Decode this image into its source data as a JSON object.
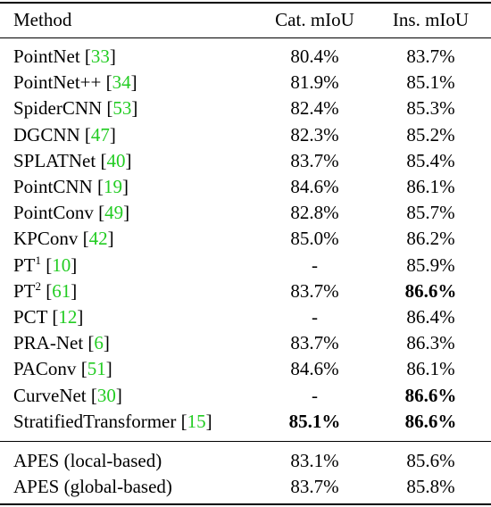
{
  "table": {
    "headers": {
      "method": "Method",
      "cat": "Cat. mIoU",
      "ins": "Ins. mIoU"
    },
    "rows": [
      {
        "name": "PointNet",
        "sup": "",
        "ref": "33",
        "cat": "80.4%",
        "ins": "83.7%",
        "cat_bold": false,
        "ins_bold": false
      },
      {
        "name": "PointNet++",
        "sup": "",
        "ref": "34",
        "cat": "81.9%",
        "ins": "85.1%",
        "cat_bold": false,
        "ins_bold": false
      },
      {
        "name": "SpiderCNN",
        "sup": "",
        "ref": "53",
        "cat": "82.4%",
        "ins": "85.3%",
        "cat_bold": false,
        "ins_bold": false
      },
      {
        "name": "DGCNN",
        "sup": "",
        "ref": "47",
        "cat": "82.3%",
        "ins": "85.2%",
        "cat_bold": false,
        "ins_bold": false
      },
      {
        "name": "SPLATNet",
        "sup": "",
        "ref": "40",
        "cat": "83.7%",
        "ins": "85.4%",
        "cat_bold": false,
        "ins_bold": false
      },
      {
        "name": "PointCNN",
        "sup": "",
        "ref": "19",
        "cat": "84.6%",
        "ins": "86.1%",
        "cat_bold": false,
        "ins_bold": false
      },
      {
        "name": "PointConv",
        "sup": "",
        "ref": "49",
        "cat": "82.8%",
        "ins": "85.7%",
        "cat_bold": false,
        "ins_bold": false
      },
      {
        "name": "KPConv",
        "sup": "",
        "ref": "42",
        "cat": "85.0%",
        "ins": "86.2%",
        "cat_bold": false,
        "ins_bold": false
      },
      {
        "name": "PT",
        "sup": "1",
        "ref": "10",
        "cat": "-",
        "ins": "85.9%",
        "cat_bold": false,
        "ins_bold": false
      },
      {
        "name": "PT",
        "sup": "2",
        "ref": "61",
        "cat": "83.7%",
        "ins": "86.6%",
        "cat_bold": false,
        "ins_bold": true
      },
      {
        "name": "PCT",
        "sup": "",
        "ref": "12",
        "cat": "-",
        "ins": "86.4%",
        "cat_bold": false,
        "ins_bold": false
      },
      {
        "name": "PRA-Net",
        "sup": "",
        "ref": "6",
        "cat": "83.7%",
        "ins": "86.3%",
        "cat_bold": false,
        "ins_bold": false
      },
      {
        "name": "PAConv",
        "sup": "",
        "ref": "51",
        "cat": "84.6%",
        "ins": "86.1%",
        "cat_bold": false,
        "ins_bold": false
      },
      {
        "name": "CurveNet",
        "sup": "",
        "ref": "30",
        "cat": "-",
        "ins": "86.6%",
        "cat_bold": false,
        "ins_bold": true
      },
      {
        "name": "StratifiedTransformer",
        "sup": "",
        "ref": "15",
        "cat": "85.1%",
        "ins": "86.6%",
        "cat_bold": true,
        "ins_bold": true
      }
    ],
    "ours": [
      {
        "name": "APES (local-based)",
        "cat": "83.1%",
        "ins": "85.6%"
      },
      {
        "name": "APES (global-based)",
        "cat": "83.7%",
        "ins": "85.8%"
      }
    ]
  }
}
